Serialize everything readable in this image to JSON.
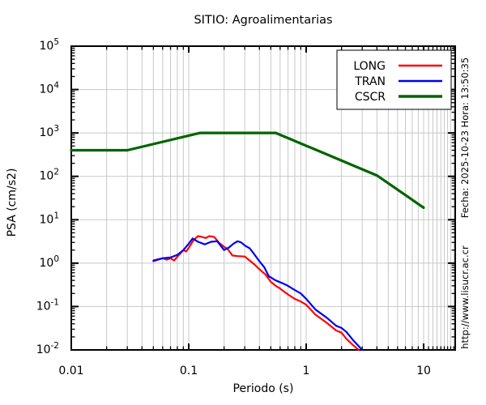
{
  "title": "SITIO: Agroalimentarias",
  "side_text": {
    "timestamp": "Fecha: 2025-10-23  Hora: 13:50:35",
    "website": "http://www.lisucr.ac.cr"
  },
  "chart_data": {
    "type": "line",
    "title": "SITIO: Agroalimentarias",
    "xlabel": "Periodo (s)",
    "ylabel": "PSA (cm/s2)",
    "x_scale": "log",
    "y_scale": "log",
    "xlim": [
      0.01,
      18.6
    ],
    "ylim": [
      0.01,
      100000
    ],
    "grid": true,
    "grid_color": "#c8c8c8",
    "x_ticks": {
      "values": [
        0.01,
        0.1,
        1,
        10
      ],
      "labels": [
        "0.01",
        "0.1",
        "1",
        "10"
      ]
    },
    "y_tick_exponents": [
      5,
      4,
      3,
      2,
      1,
      0,
      -1,
      -2
    ],
    "legend": {
      "position": "top-right",
      "entries": [
        {
          "label": "LONG",
          "color": "#ff0000",
          "sample_width": 2.6
        },
        {
          "label": "TRAN",
          "color": "#0000ee",
          "sample_width": 2.6
        },
        {
          "label": "CSCR",
          "color": "#006400",
          "sample_width": 3.6
        }
      ]
    },
    "series": [
      {
        "name": "LONG",
        "color": "#ff0000",
        "width": 2.2,
        "points": [
          [
            0.05,
            1.1
          ],
          [
            0.055,
            1.2
          ],
          [
            0.06,
            1.3
          ],
          [
            0.065,
            1.2
          ],
          [
            0.07,
            1.3
          ],
          [
            0.075,
            1.15
          ],
          [
            0.08,
            1.4
          ],
          [
            0.09,
            2.0
          ],
          [
            0.095,
            1.85
          ],
          [
            0.1,
            2.25
          ],
          [
            0.11,
            3.4
          ],
          [
            0.12,
            4.2
          ],
          [
            0.13,
            4.0
          ],
          [
            0.14,
            3.8
          ],
          [
            0.15,
            4.2
          ],
          [
            0.165,
            4.0
          ],
          [
            0.18,
            3.0
          ],
          [
            0.195,
            2.5
          ],
          [
            0.215,
            2.1
          ],
          [
            0.235,
            1.5
          ],
          [
            0.26,
            1.45
          ],
          [
            0.3,
            1.42
          ],
          [
            0.33,
            1.15
          ],
          [
            0.36,
            0.95
          ],
          [
            0.4,
            0.72
          ],
          [
            0.45,
            0.55
          ],
          [
            0.5,
            0.37
          ],
          [
            0.55,
            0.3
          ],
          [
            0.6,
            0.26
          ],
          [
            0.65,
            0.22
          ],
          [
            0.7,
            0.19
          ],
          [
            0.8,
            0.15
          ],
          [
            0.9,
            0.13
          ],
          [
            1.0,
            0.11
          ],
          [
            1.2,
            0.065
          ],
          [
            1.5,
            0.042
          ],
          [
            1.8,
            0.028
          ],
          [
            2.0,
            0.025
          ],
          [
            2.2,
            0.018
          ],
          [
            2.5,
            0.013
          ],
          [
            2.8,
            0.01
          ]
        ]
      },
      {
        "name": "TRAN",
        "color": "#0000ee",
        "width": 2.2,
        "points": [
          [
            0.05,
            1.15
          ],
          [
            0.06,
            1.3
          ],
          [
            0.07,
            1.35
          ],
          [
            0.08,
            1.55
          ],
          [
            0.09,
            2.0
          ],
          [
            0.1,
            2.8
          ],
          [
            0.108,
            3.7
          ],
          [
            0.12,
            3.1
          ],
          [
            0.137,
            2.7
          ],
          [
            0.155,
            3.1
          ],
          [
            0.175,
            3.2
          ],
          [
            0.2,
            2.0
          ],
          [
            0.22,
            2.3
          ],
          [
            0.24,
            2.8
          ],
          [
            0.26,
            3.2
          ],
          [
            0.28,
            3.0
          ],
          [
            0.3,
            2.55
          ],
          [
            0.33,
            2.2
          ],
          [
            0.35,
            1.8
          ],
          [
            0.4,
            1.1
          ],
          [
            0.44,
            0.8
          ],
          [
            0.48,
            0.5
          ],
          [
            0.55,
            0.4
          ],
          [
            0.62,
            0.35
          ],
          [
            0.7,
            0.3
          ],
          [
            0.8,
            0.24
          ],
          [
            0.9,
            0.2
          ],
          [
            1.0,
            0.15
          ],
          [
            1.2,
            0.085
          ],
          [
            1.5,
            0.055
          ],
          [
            1.8,
            0.036
          ],
          [
            2.0,
            0.032
          ],
          [
            2.2,
            0.026
          ],
          [
            2.5,
            0.017
          ],
          [
            3.0,
            0.01
          ]
        ]
      },
      {
        "name": "CSCR",
        "color": "#006400",
        "width": 3.2,
        "points": [
          [
            0.01,
            400
          ],
          [
            0.03,
            400
          ],
          [
            0.125,
            1000
          ],
          [
            0.55,
            1000
          ],
          [
            4.0,
            105
          ],
          [
            10.0,
            19
          ]
        ]
      }
    ]
  }
}
